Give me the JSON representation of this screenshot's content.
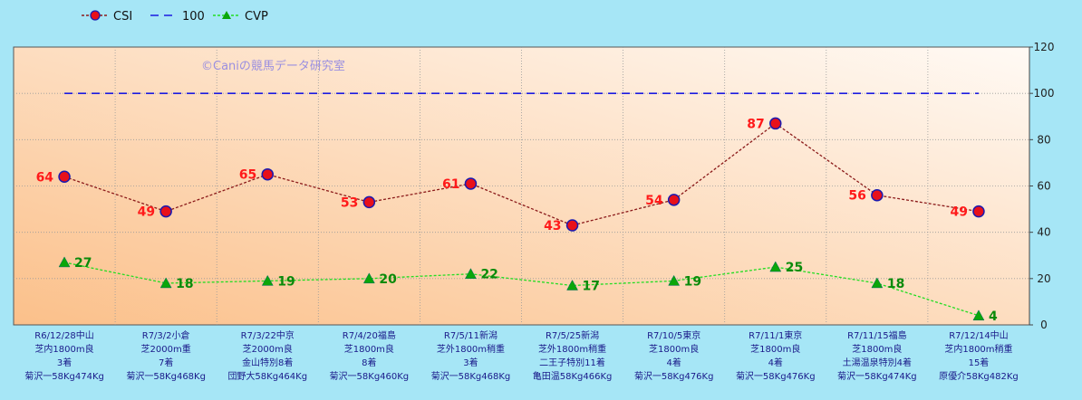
{
  "chart_data": {
    "type": "line",
    "watermark": "©Caniの競馬データ研究室",
    "categories": [
      [
        "R6/12/28中山",
        "芝内1800m良",
        "3着",
        "菊沢一58Kg474Kg"
      ],
      [
        "R7/3/2小倉",
        "芝2000m重",
        "7着",
        "菊沢一58Kg468Kg"
      ],
      [
        "R7/3/22中京",
        "芝2000m良",
        "金山特別8着",
        "団野大58Kg464Kg"
      ],
      [
        "R7/4/20福島",
        "芝1800m良",
        "8着",
        "菊沢一58Kg460Kg"
      ],
      [
        "R7/5/11新潟",
        "芝外1800m稍重",
        "3着",
        "菊沢一58Kg468Kg"
      ],
      [
        "R7/5/25新潟",
        "芝外1800m稍重",
        "二王子特別11着",
        "亀田温58Kg466Kg"
      ],
      [
        "R7/10/5東京",
        "芝1800m良",
        "4着",
        "菊沢一58Kg476Kg"
      ],
      [
        "R7/11/1東京",
        "芝1800m良",
        "4着",
        "菊沢一58Kg476Kg"
      ],
      [
        "R7/11/15福島",
        "芝1800m良",
        "土湯温泉特別4着",
        "菊沢一58Kg474Kg"
      ],
      [
        "R7/12/14中山",
        "芝内1800m稍重",
        "15着",
        "原優介58Kg482Kg"
      ]
    ],
    "series": [
      {
        "name": "CSI",
        "values": [
          64,
          49,
          65,
          53,
          61,
          43,
          54,
          87,
          56,
          49
        ],
        "color": "#8b1a1a",
        "marker_color": "#e8101a",
        "label_color": "#ff1a1a"
      },
      {
        "name": "100",
        "values": [
          100,
          100,
          100,
          100,
          100,
          100,
          100,
          100,
          100,
          100
        ],
        "color": "#1c1ce0"
      },
      {
        "name": "CVP",
        "values": [
          27,
          18,
          19,
          20,
          22,
          17,
          19,
          25,
          18,
          4
        ],
        "color": "#22dd22",
        "marker_color": "#0aa60a",
        "label_color": "#0a8a0a"
      }
    ],
    "ylim": [
      0,
      120
    ],
    "yticks": [
      0,
      20,
      40,
      60,
      80,
      100,
      120
    ],
    "grid": true,
    "legend_position": "top-left",
    "colors": {
      "page_bg": "#a6e6f6",
      "plot_bg_start": "#fbc08a",
      "plot_bg_end": "#fffaf5",
      "category_text": "#1a1a8a"
    }
  }
}
